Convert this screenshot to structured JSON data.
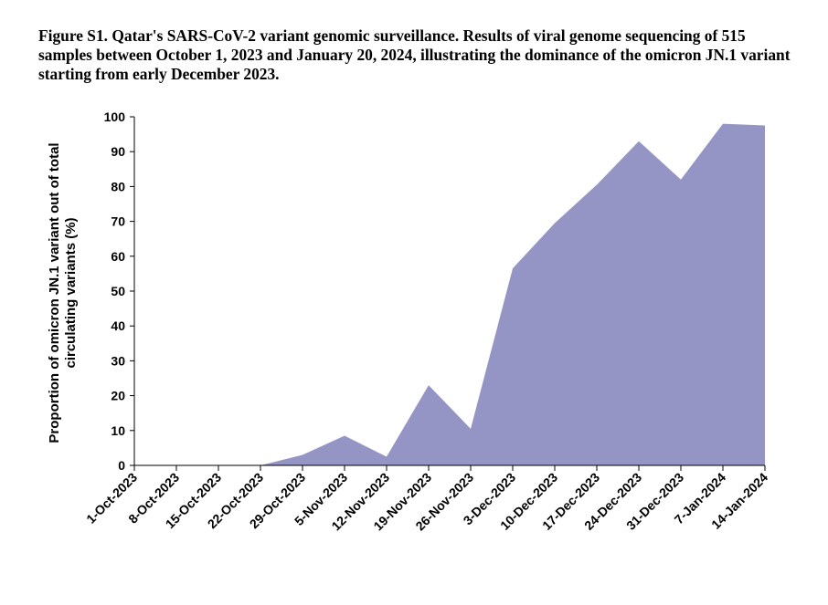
{
  "caption": "Figure S1. Qatar's SARS-CoV-2 variant genomic surveillance. Results of viral genome sequencing of 515 samples between October 1, 2023 and January 20, 2024, illustrating the dominance of the omicron JN.1 variant starting from early December 2023.",
  "chart_data": {
    "type": "area",
    "title": "",
    "ylabel_line1": "Proportion of omicron JN.1 variant out of total",
    "ylabel_line2": "circulating variants (%)",
    "xlabel": "",
    "ylim": [
      0,
      100
    ],
    "yticks": [
      0,
      10,
      20,
      30,
      40,
      50,
      60,
      70,
      80,
      90,
      100
    ],
    "grid": false,
    "fill_color": "#9595c5",
    "categories": [
      "1-Oct-2023",
      "8-Oct-2023",
      "15-Oct-2023",
      "22-Oct-2023",
      "29-Oct-2023",
      "5-Nov-2023",
      "12-Nov-2023",
      "19-Nov-2023",
      "26-Nov-2023",
      "3-Dec-2023",
      "10-Dec-2023",
      "17-Dec-2023",
      "24-Dec-2023",
      "31-Dec-2023",
      "7-Jan-2024",
      "14-Jan-2024"
    ],
    "values": [
      0,
      0,
      0,
      0,
      3,
      8.5,
      2.5,
      23,
      10.5,
      56.5,
      69.5,
      80.5,
      93,
      82,
      98,
      97.5
    ]
  }
}
